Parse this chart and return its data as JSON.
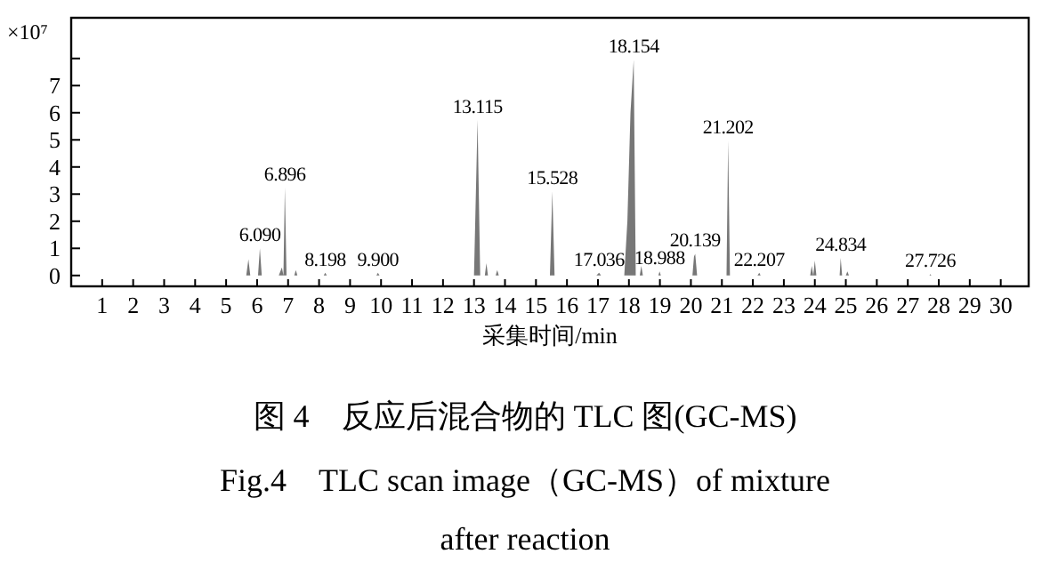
{
  "chart_data": {
    "type": "area",
    "title": "图 4　反应后混合物的 TLC 图(GC-MS)",
    "subtitle": "Fig.4　TLC scan image（GC-MS）of mixture after reaction",
    "xlabel": "采集时间/min",
    "ylabel": "×10⁷",
    "x": [
      0.5,
      5.5,
      5.65,
      5.72,
      5.78,
      6.03,
      6.09,
      6.15,
      6.7,
      6.8,
      6.85,
      6.896,
      6.95,
      7.2,
      7.25,
      7.3,
      8.15,
      8.198,
      8.25,
      9.85,
      9.9,
      9.95,
      13.0,
      13.115,
      13.2,
      13.35,
      13.4,
      13.45,
      13.7,
      13.75,
      13.8,
      15.45,
      15.528,
      15.6,
      16.95,
      17.036,
      17.1,
      17.85,
      17.95,
      18.05,
      18.154,
      18.22,
      18.35,
      18.4,
      18.45,
      18.95,
      18.988,
      19.03,
      20.05,
      20.1,
      20.139,
      20.2,
      21.15,
      21.202,
      21.26,
      22.15,
      22.207,
      22.25,
      23.85,
      23.9,
      23.95,
      24.0,
      24.05,
      24.8,
      24.834,
      24.88,
      25.0,
      25.05,
      25.1,
      27.7,
      27.726,
      27.76,
      30.5
    ],
    "series": [
      {
        "color": "#555555",
        "values": [
          0,
          0,
          0,
          0.6,
          0,
          0,
          1.0,
          0,
          0,
          0.3,
          0,
          3.25,
          0,
          0,
          0.2,
          0,
          0,
          0.1,
          0,
          0,
          0.1,
          0,
          0,
          5.74,
          0,
          0,
          0.45,
          0,
          0,
          0.2,
          0,
          0,
          3.1,
          0,
          0,
          0.1,
          0,
          0,
          2.0,
          6.0,
          7.95,
          0,
          0,
          0.35,
          0,
          0,
          0.15,
          0,
          0,
          0.7,
          0.8,
          0,
          0,
          4.97,
          0,
          0,
          0.1,
          0,
          0,
          0.35,
          0,
          0.55,
          0,
          0,
          0.65,
          0,
          0,
          0.15,
          0,
          0,
          0.05,
          0,
          0
        ]
      }
    ],
    "xlim": [
      0,
      30.9
    ],
    "ylim": [
      -0.4,
      9.5
    ],
    "xticks": [
      1,
      2,
      3,
      4,
      5,
      6,
      7,
      8,
      9,
      10,
      11,
      12,
      13,
      14,
      15,
      16,
      17,
      18,
      19,
      20,
      21,
      22,
      23,
      24,
      25,
      26,
      27,
      28,
      29,
      30
    ],
    "yticks": [
      0,
      1,
      2,
      3,
      4,
      5,
      6,
      7,
      {
        "value": 8,
        "label": null
      }
    ],
    "annotations": [
      {
        "text": "6.090",
        "x": 6.09,
        "y": 1.0
      },
      {
        "text": "6.896",
        "x": 6.896,
        "y": 3.25
      },
      {
        "text": "8.198",
        "x": 8.198,
        "y": 0.1
      },
      {
        "text": "9.900",
        "x": 9.9,
        "y": 0.1
      },
      {
        "text": "13.115",
        "x": 13.115,
        "y": 5.74
      },
      {
        "text": "15.528",
        "x": 15.528,
        "y": 3.1
      },
      {
        "text": "17.036",
        "x": 17.036,
        "y": 0.1
      },
      {
        "text": "18.154",
        "x": 18.154,
        "y": 7.95
      },
      {
        "text": "18.988",
        "x": 18.988,
        "y": 0.15
      },
      {
        "text": "20.139",
        "x": 20.139,
        "y": 0.8
      },
      {
        "text": "21.202",
        "x": 21.202,
        "y": 4.97
      },
      {
        "text": "22.207",
        "x": 22.207,
        "y": 0.1
      },
      {
        "text": "24.834",
        "x": 24.834,
        "y": 0.65
      },
      {
        "text": "27.726",
        "x": 27.726,
        "y": 0.05
      }
    ]
  }
}
